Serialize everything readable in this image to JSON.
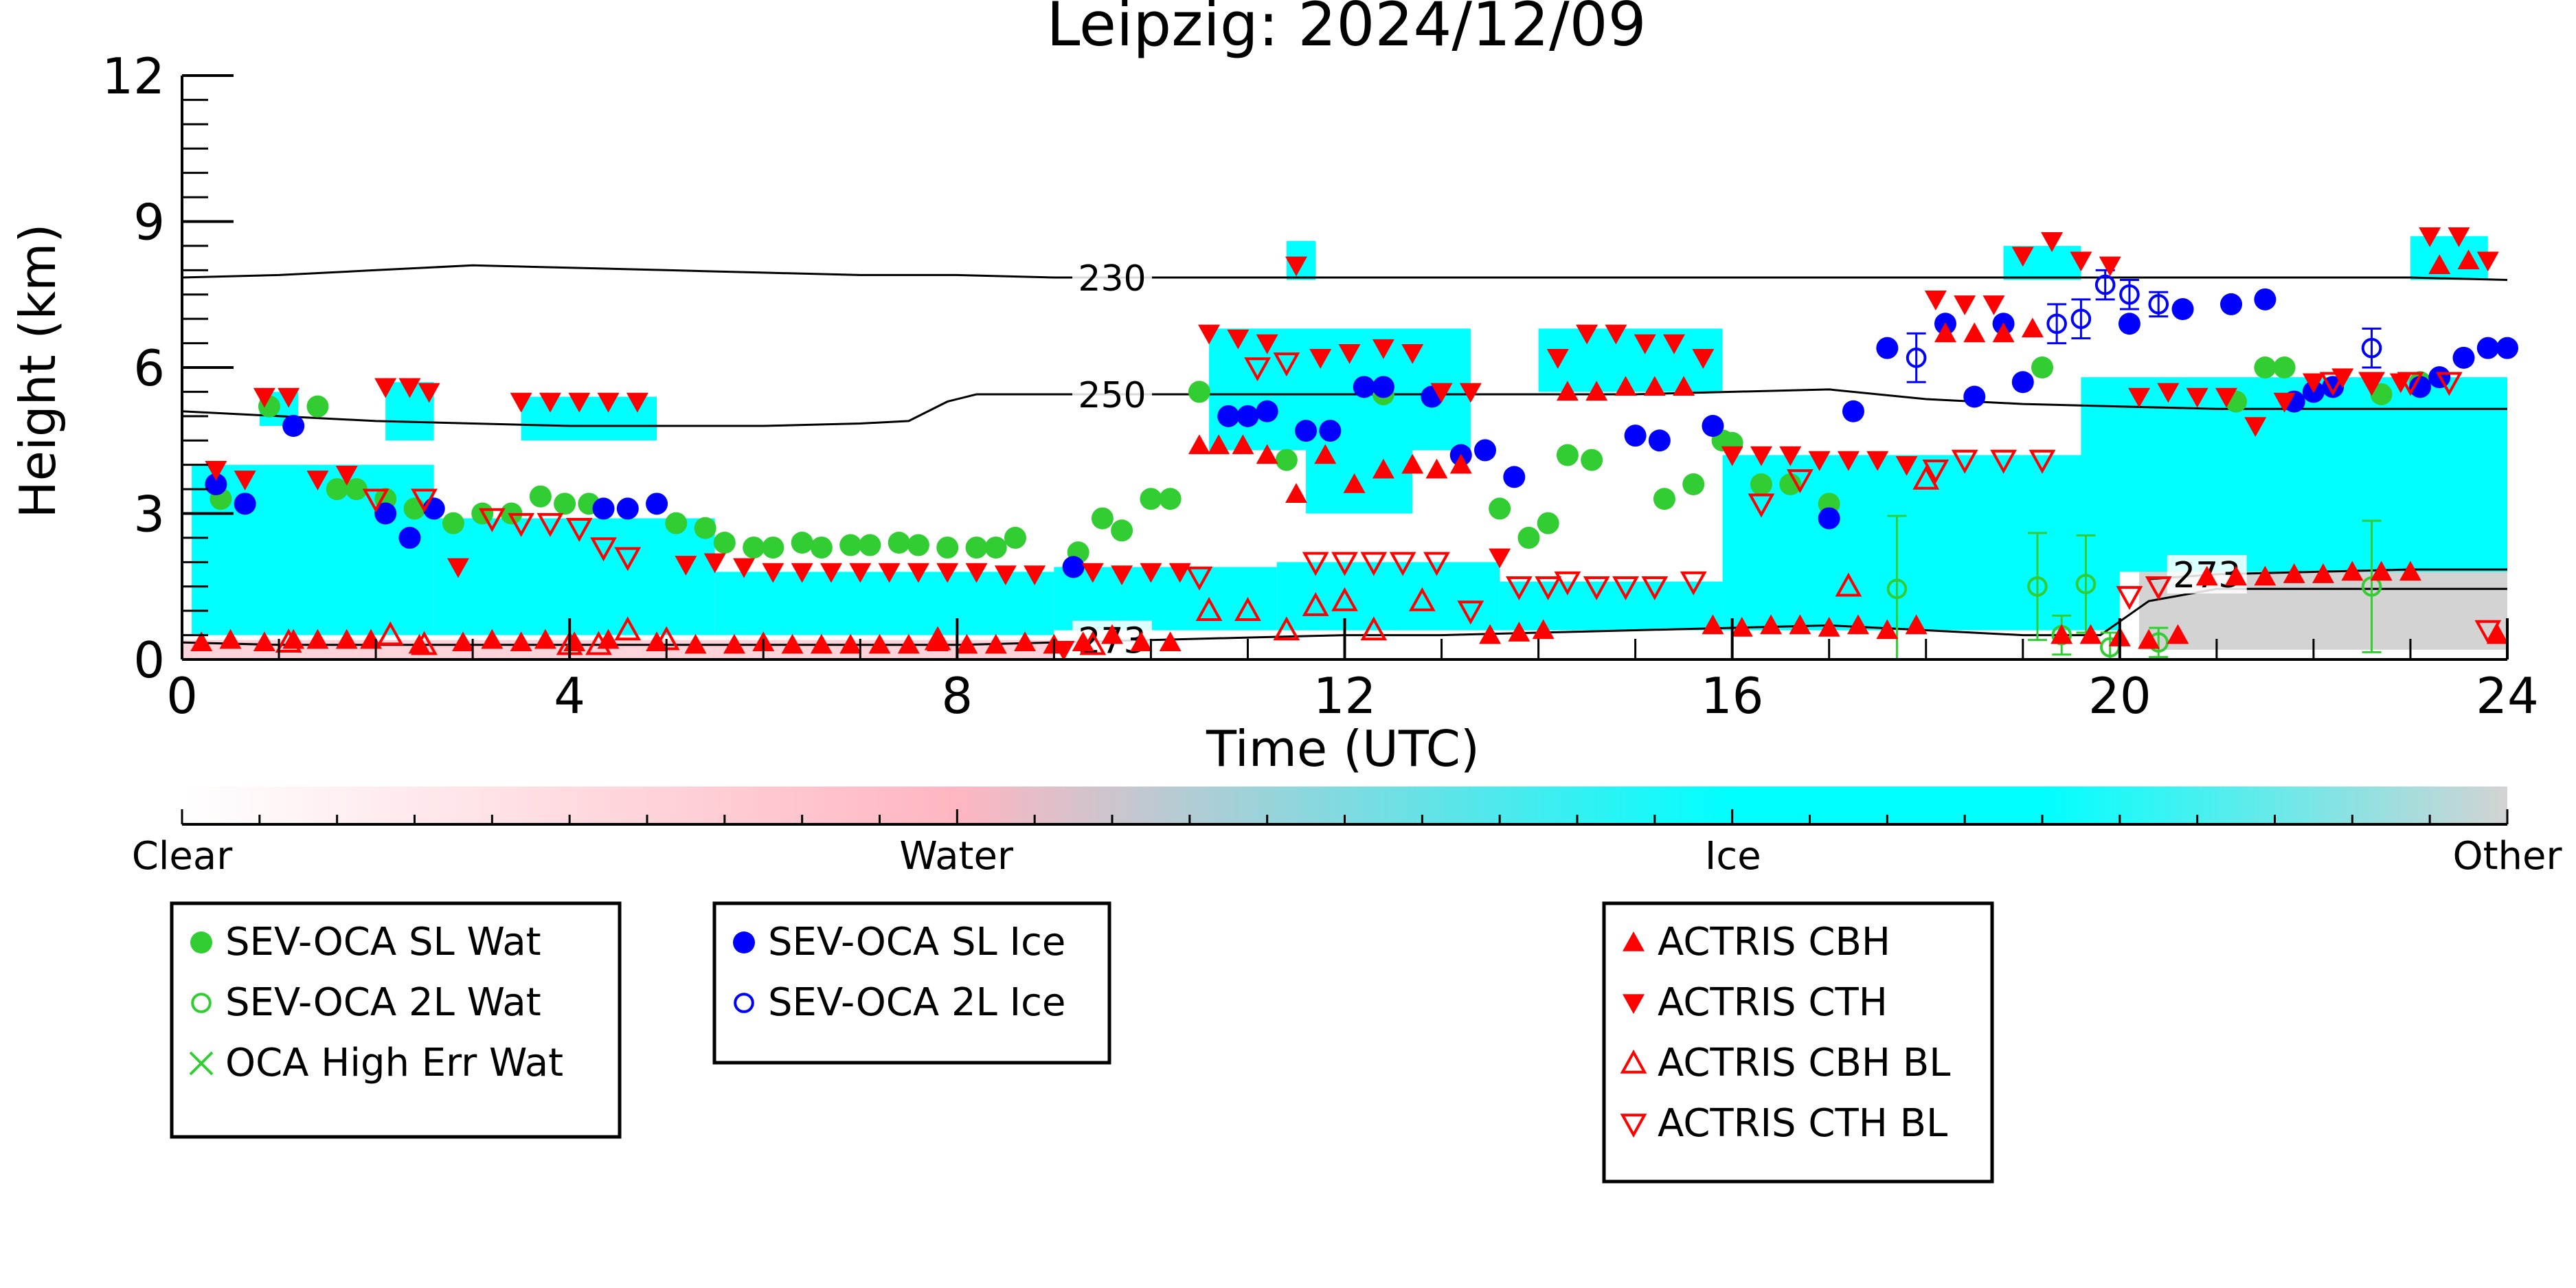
{
  "chart_data": {
    "type": "scatter",
    "title": "Leipzig: 2024/12/09",
    "xlabel": "Time (UTC)",
    "ylabel": "Height (km)",
    "xlim": [
      0,
      24
    ],
    "ylim": [
      0,
      12
    ],
    "x_ticks": [
      "0",
      "4",
      "8",
      "12",
      "16",
      "20",
      "24"
    ],
    "y_ticks": [
      "0",
      "3",
      "6",
      "9",
      "12"
    ],
    "colorbar": {
      "labels": [
        "Clear",
        "Water",
        "Ice",
        "Other"
      ],
      "colors": [
        "#ffffff",
        "#ffb6c1",
        "#00ffff",
        "#d3d3d3"
      ]
    },
    "contours": [
      {
        "label": "230",
        "label_x": 9.6,
        "x": [
          0,
          1,
          2,
          3,
          4,
          5,
          6,
          7,
          8,
          9,
          10,
          11,
          12,
          13,
          14,
          15,
          16,
          17,
          18,
          19,
          20,
          21,
          22,
          23,
          24
        ],
        "y": [
          7.85,
          7.9,
          8.0,
          8.1,
          8.05,
          8.0,
          7.95,
          7.9,
          7.9,
          7.85,
          7.85,
          7.85,
          7.85,
          7.85,
          7.85,
          7.85,
          7.85,
          7.85,
          7.85,
          7.85,
          7.85,
          7.85,
          7.85,
          7.85,
          7.8
        ]
      },
      {
        "label": "250",
        "label_x": 9.6,
        "x": [
          0,
          1,
          2,
          3,
          4,
          5,
          6,
          7,
          7.5,
          7.9,
          8.2,
          9,
          10,
          11,
          12,
          13,
          14,
          15,
          16,
          17,
          18,
          19,
          20,
          21,
          22,
          23,
          24
        ],
        "y": [
          5.1,
          5.0,
          4.9,
          4.85,
          4.8,
          4.8,
          4.8,
          4.85,
          4.9,
          5.3,
          5.45,
          5.45,
          5.45,
          5.45,
          5.45,
          5.45,
          5.45,
          5.45,
          5.5,
          5.55,
          5.35,
          5.25,
          5.2,
          5.15,
          5.15,
          5.15,
          5.15
        ]
      },
      {
        "label": "273",
        "label_x": 9.6,
        "x": [
          0,
          1,
          2,
          3,
          4,
          5,
          6,
          7,
          8,
          9,
          10,
          11,
          12,
          13,
          14,
          15,
          16,
          17,
          18,
          19,
          19.8,
          20.3,
          21,
          22,
          23,
          24
        ],
        "y": [
          0.35,
          0.3,
          0.3,
          0.3,
          0.3,
          0.3,
          0.3,
          0.3,
          0.3,
          0.35,
          0.4,
          0.45,
          0.5,
          0.5,
          0.55,
          0.6,
          0.65,
          0.7,
          0.6,
          0.5,
          0.5,
          1.2,
          1.45,
          1.45,
          1.45,
          1.45
        ]
      },
      {
        "label": "273",
        "label_x": 20.9,
        "x": [
          20.3,
          21,
          22,
          23,
          24
        ],
        "y": [
          1.65,
          1.75,
          1.8,
          1.85,
          1.85
        ]
      }
    ],
    "series": [
      {
        "name": "SEV-OCA SL Wat",
        "marker": "filled-circle",
        "color": "#32cd32",
        "x": [
          0.4,
          0.9,
          1.4,
          1.6,
          1.8,
          2.1,
          2.4,
          2.8,
          3.1,
          3.4,
          3.7,
          3.95,
          4.2,
          5.1,
          5.4,
          5.6,
          5.9,
          6.1,
          6.4,
          6.6,
          6.9,
          7.1,
          7.4,
          7.6,
          7.9,
          8.2,
          8.4,
          8.6,
          9.25,
          9.5,
          9.7,
          10.0,
          10.2,
          10.5,
          11.4,
          12.4,
          13.6,
          13.9,
          14.1,
          14.3,
          14.55,
          15.3,
          15.6,
          15.9,
          16.0,
          16.3,
          16.6,
          17.0,
          19.2,
          21.2,
          21.5,
          21.7,
          22.7,
          23.1
        ],
        "y": [
          3.3,
          5.2,
          5.2,
          3.5,
          3.5,
          3.3,
          3.1,
          2.8,
          3.0,
          3.0,
          3.35,
          3.2,
          3.2,
          2.8,
          2.7,
          2.4,
          2.3,
          2.3,
          2.4,
          2.3,
          2.35,
          2.35,
          2.4,
          2.35,
          2.3,
          2.3,
          2.3,
          2.5,
          2.2,
          2.9,
          2.65,
          3.3,
          3.3,
          5.5,
          4.1,
          5.45,
          3.1,
          2.5,
          2.8,
          4.2,
          4.1,
          3.3,
          3.6,
          4.5,
          4.45,
          3.6,
          3.6,
          3.2,
          6.0,
          5.3,
          6.0,
          6.0,
          5.45,
          5.7
        ]
      },
      {
        "name": "SEV-OCA 2L Wat",
        "marker": "open-circle",
        "color": "#32cd32",
        "x": [
          17.7,
          19.15,
          19.4,
          19.65,
          19.9,
          20.4,
          22.6
        ],
        "y": [
          1.45,
          1.5,
          0.5,
          1.55,
          0.25,
          0.35,
          1.5
        ],
        "y_err": [
          1.5,
          1.1,
          0.4,
          1.0,
          0.3,
          0.3,
          1.35
        ]
      },
      {
        "name": "OCA High Err Wat",
        "marker": "x",
        "color": "#32cd32",
        "x": [],
        "y": []
      },
      {
        "name": "SEV-OCA SL Ice",
        "marker": "filled-circle",
        "color": "#0000ff",
        "x": [
          0.35,
          0.65,
          1.15,
          2.1,
          2.35,
          2.6,
          4.35,
          4.6,
          4.9,
          9.2,
          10.8,
          11.0,
          11.2,
          11.6,
          11.85,
          12.2,
          12.4,
          12.9,
          13.2,
          13.45,
          13.75,
          15.0,
          15.25,
          15.8,
          17.0,
          17.25,
          17.6,
          18.2,
          18.5,
          18.8,
          19.0,
          20.1,
          20.65,
          21.15,
          21.5,
          21.8,
          22.0,
          22.2,
          23.1,
          23.3,
          23.55,
          23.8,
          24.0
        ],
        "y": [
          3.6,
          3.2,
          4.8,
          3.0,
          2.5,
          3.1,
          3.1,
          3.1,
          3.2,
          1.9,
          5.0,
          5.0,
          5.1,
          4.7,
          4.7,
          5.6,
          5.6,
          5.4,
          4.2,
          4.3,
          3.75,
          4.6,
          4.5,
          4.8,
          2.9,
          5.1,
          6.4,
          6.9,
          5.4,
          6.9,
          5.7,
          6.9,
          7.2,
          7.3,
          7.4,
          5.3,
          5.5,
          5.6,
          5.6,
          5.8,
          6.2,
          6.4,
          6.4
        ]
      },
      {
        "name": "SEV-OCA 2L Ice",
        "marker": "open-circle",
        "color": "#0000ff",
        "x": [
          17.9,
          19.35,
          19.6,
          19.85,
          20.1,
          20.4,
          22.6
        ],
        "y": [
          6.2,
          6.9,
          7.0,
          7.7,
          7.5,
          7.3,
          6.4
        ],
        "y_err": [
          0.5,
          0.4,
          0.4,
          0.3,
          0.3,
          0.25,
          0.4
        ]
      },
      {
        "name": "ACTRIS CBH",
        "marker": "triangle-up",
        "color": "#ff0000",
        "x": [
          0.2,
          0.5,
          0.85,
          1.15,
          1.4,
          1.7,
          1.95,
          2.45,
          2.9,
          3.2,
          3.5,
          3.75,
          4.05,
          4.4,
          4.9,
          5.3,
          5.7,
          6.0,
          6.3,
          6.6,
          6.9,
          7.2,
          7.5,
          7.8,
          8.1,
          8.4,
          8.7,
          9.0,
          9.3,
          9.6,
          9.9,
          10.2,
          10.5,
          10.7,
          10.95,
          11.2,
          11.5,
          11.8,
          12.1,
          12.4,
          12.7,
          12.95,
          13.2,
          13.5,
          13.8,
          14.05,
          14.3,
          14.6,
          14.9,
          15.2,
          15.5,
          15.8,
          16.1,
          16.4,
          16.7,
          17.0,
          17.3,
          17.6,
          17.9,
          18.2,
          18.5,
          18.8,
          19.1,
          19.4,
          19.7,
          20.0,
          20.3,
          20.6,
          20.9,
          21.2,
          21.5,
          21.8,
          22.1,
          22.4,
          22.7,
          23.0,
          23.3,
          23.6,
          23.9
        ],
        "y": [
          0.35,
          0.4,
          0.35,
          0.4,
          0.4,
          0.4,
          0.4,
          0.3,
          0.35,
          0.4,
          0.35,
          0.4,
          0.35,
          0.4,
          0.35,
          0.3,
          0.3,
          0.35,
          0.3,
          0.3,
          0.3,
          0.3,
          0.3,
          0.35,
          0.3,
          0.3,
          0.35,
          0.3,
          0.35,
          0.5,
          0.35,
          0.35,
          4.4,
          4.4,
          4.4,
          4.2,
          3.4,
          4.2,
          3.6,
          3.9,
          4.0,
          3.9,
          4.0,
          0.5,
          0.55,
          0.6,
          5.5,
          5.5,
          5.6,
          5.6,
          5.6,
          0.7,
          0.65,
          0.7,
          0.7,
          0.65,
          0.7,
          0.6,
          0.7,
          6.7,
          6.7,
          6.7,
          6.8,
          0.5,
          0.5,
          0.45,
          0.4,
          0.5,
          1.7,
          1.7,
          1.7,
          1.75,
          1.75,
          1.8,
          1.8,
          1.8,
          8.1,
          8.2,
          0.5
        ]
      },
      {
        "name": "ACTRIS CTH",
        "marker": "triangle-down",
        "color": "#ff0000",
        "x": [
          0.35,
          0.65,
          0.85,
          1.1,
          1.4,
          1.7,
          2.1,
          2.35,
          2.55,
          2.85,
          3.5,
          3.8,
          4.1,
          4.4,
          4.7,
          5.2,
          5.5,
          5.8,
          6.1,
          6.4,
          6.7,
          7.0,
          7.3,
          7.6,
          7.9,
          8.2,
          8.5,
          8.8,
          9.1,
          9.4,
          9.7,
          10.0,
          10.3,
          10.6,
          10.9,
          11.2,
          11.5,
          11.75,
          12.05,
          12.4,
          12.7,
          13.0,
          13.3,
          13.6,
          14.2,
          14.5,
          14.8,
          15.1,
          15.4,
          15.7,
          16.0,
          16.3,
          16.6,
          16.9,
          17.2,
          17.5,
          17.8,
          18.1,
          18.4,
          18.7,
          19.0,
          19.3,
          19.6,
          19.9,
          20.2,
          20.5,
          20.8,
          21.1,
          21.4,
          21.7,
          22.0,
          22.3,
          22.6,
          22.9,
          23.2,
          23.5,
          23.8
        ],
        "y": [
          3.9,
          3.7,
          5.4,
          5.4,
          3.7,
          3.8,
          5.6,
          5.6,
          5.5,
          1.9,
          5.3,
          5.3,
          5.3,
          5.3,
          5.3,
          1.95,
          2.0,
          1.9,
          1.8,
          1.8,
          1.8,
          1.8,
          1.8,
          1.8,
          1.8,
          1.8,
          1.75,
          1.75,
          0.2,
          1.8,
          1.75,
          1.8,
          1.8,
          6.7,
          6.6,
          6.5,
          8.1,
          6.2,
          6.3,
          6.4,
          6.3,
          5.5,
          5.5,
          2.1,
          6.2,
          6.7,
          6.7,
          6.5,
          6.5,
          6.2,
          4.2,
          4.2,
          4.2,
          4.1,
          4.1,
          4.1,
          4.0,
          7.4,
          7.3,
          7.3,
          8.3,
          8.6,
          8.2,
          8.1,
          5.4,
          5.5,
          5.4,
          5.4,
          4.8,
          5.3,
          5.7,
          5.8,
          5.7,
          5.7,
          8.7,
          8.7,
          8.2
        ]
      },
      {
        "name": "ACTRIS CBH BL",
        "marker": "open-triangle-up",
        "color": "#ff0000",
        "x": [
          1.1,
          2.15,
          2.5,
          4.0,
          4.3,
          4.6,
          5.0,
          7.8,
          9.4,
          10.6,
          11.0,
          11.4,
          11.7,
          12.0,
          12.3,
          12.8,
          17.2,
          18.0
        ],
        "y": [
          0.35,
          0.5,
          0.3,
          0.3,
          0.3,
          0.6,
          0.4,
          0.4,
          0.3,
          1.0,
          1.0,
          0.6,
          1.1,
          1.2,
          0.6,
          1.2,
          1.5,
          3.7
        ]
      },
      {
        "name": "ACTRIS CTH BL",
        "marker": "open-triangle-down",
        "color": "#ff0000",
        "x": [
          2.0,
          2.5,
          3.2,
          3.5,
          3.8,
          4.1,
          4.35,
          4.6,
          10.5,
          11.1,
          11.4,
          11.7,
          12.0,
          12.3,
          12.6,
          12.95,
          13.3,
          13.8,
          14.1,
          14.3,
          14.6,
          14.9,
          15.2,
          15.6,
          16.3,
          16.7,
          18.1,
          18.4,
          18.8,
          19.2,
          20.1,
          20.4,
          22.2,
          22.6,
          23.0,
          23.4,
          23.8
        ],
        "y": [
          3.3,
          3.3,
          2.9,
          2.8,
          2.8,
          2.7,
          2.3,
          2.1,
          1.7,
          6.0,
          6.1,
          2.0,
          2.0,
          2.0,
          2.0,
          2.0,
          1.0,
          1.5,
          1.5,
          1.6,
          1.5,
          1.5,
          1.5,
          1.6,
          3.2,
          3.7,
          3.9,
          4.1,
          4.1,
          4.1,
          1.3,
          1.5,
          5.7,
          5.7,
          5.7,
          5.7,
          0.6
        ]
      }
    ],
    "legends": [
      {
        "entries": [
          "SEV-OCA SL Wat",
          "SEV-OCA 2L Wat",
          "OCA High Err Wat"
        ]
      },
      {
        "entries": [
          "SEV-OCA SL Ice",
          "SEV-OCA 2L Ice"
        ]
      },
      {
        "entries": [
          "ACTRIS CBH",
          "ACTRIS CTH",
          "ACTRIS CBH BL",
          "ACTRIS CTH BL"
        ]
      }
    ],
    "background_classification": [
      {
        "class": "Ice",
        "x0": 0.1,
        "x1": 2.6,
        "y0": 0.5,
        "y1": 4.0
      },
      {
        "class": "Ice",
        "x0": 0.8,
        "x1": 1.2,
        "y0": 4.8,
        "y1": 5.5
      },
      {
        "class": "Ice",
        "x0": 2.1,
        "x1": 2.6,
        "y0": 4.5,
        "y1": 5.7
      },
      {
        "class": "Ice",
        "x0": 3.5,
        "x1": 4.9,
        "y0": 4.5,
        "y1": 5.4
      },
      {
        "class": "Ice",
        "x0": 2.6,
        "x1": 5.5,
        "y0": 0.5,
        "y1": 2.9
      },
      {
        "class": "Ice",
        "x0": 5.5,
        "x1": 9.0,
        "y0": 0.5,
        "y1": 1.8
      },
      {
        "class": "Ice",
        "x0": 9.0,
        "x1": 11.3,
        "y0": 0.6,
        "y1": 1.9
      },
      {
        "class": "Ice",
        "x0": 10.6,
        "x1": 13.3,
        "y0": 4.3,
        "y1": 6.8
      },
      {
        "class": "Ice",
        "x0": 11.4,
        "x1": 11.7,
        "y0": 7.8,
        "y1": 8.6
      },
      {
        "class": "Ice",
        "x0": 11.3,
        "x1": 13.6,
        "y0": 0.6,
        "y1": 2.0
      },
      {
        "class": "Ice",
        "x0": 11.6,
        "x1": 12.7,
        "y0": 3.0,
        "y1": 4.4
      },
      {
        "class": "Ice",
        "x0": 14.0,
        "x1": 15.9,
        "y0": 5.5,
        "y1": 6.8
      },
      {
        "class": "Ice",
        "x0": 13.6,
        "x1": 15.9,
        "y0": 0.6,
        "y1": 1.6
      },
      {
        "class": "Ice",
        "x0": 15.9,
        "x1": 20.0,
        "y0": 0.6,
        "y1": 4.2
      },
      {
        "class": "Ice",
        "x0": 18.8,
        "x1": 19.6,
        "y0": 7.8,
        "y1": 8.5
      },
      {
        "class": "Ice",
        "x0": 19.6,
        "x1": 24.0,
        "y0": 1.8,
        "y1": 5.8
      },
      {
        "class": "Ice",
        "x0": 23.0,
        "x1": 23.8,
        "y0": 7.8,
        "y1": 8.7
      },
      {
        "class": "Other",
        "x0": 20.2,
        "x1": 24.0,
        "y0": 0.2,
        "y1": 1.8
      },
      {
        "class": "Water",
        "x0": 0.0,
        "x1": 9.0,
        "y0": 0.0,
        "y1": 0.4
      }
    ]
  }
}
